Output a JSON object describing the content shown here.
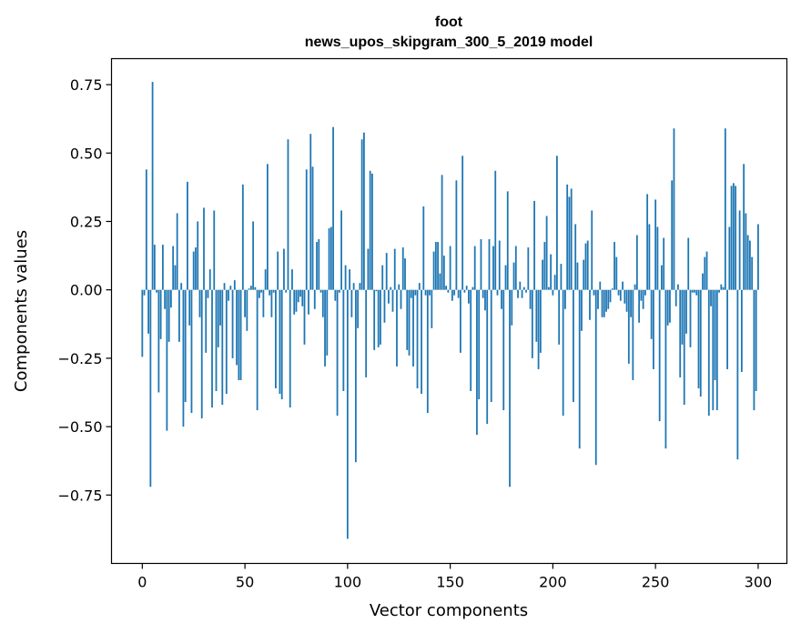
{
  "chart_data": {
    "type": "bar",
    "title": "foot",
    "subtitle": "news_upos_skipgram_300_5_2019 model",
    "xlabel": "Vector components",
    "ylabel": "Components values",
    "xlim": [
      -15,
      314
    ],
    "ylim": [
      -1.0,
      0.845
    ],
    "xticks": [
      0,
      50,
      100,
      150,
      200,
      250,
      300
    ],
    "yticks": [
      -0.75,
      -0.5,
      -0.25,
      0.0,
      0.25,
      0.5,
      0.75
    ],
    "ytick_labels": [
      "−0.75",
      "−0.50",
      "−0.25",
      "0.00",
      "0.25",
      "0.50",
      "0.75"
    ],
    "bar_color": "#1f77b4",
    "values": [
      -0.245,
      -0.02,
      0.44,
      -0.16,
      -0.72,
      0.76,
      0.165,
      -0.01,
      -0.375,
      -0.18,
      0.165,
      -0.07,
      -0.515,
      -0.19,
      -0.065,
      0.16,
      0.09,
      0.28,
      -0.19,
      0.025,
      -0.5,
      -0.41,
      0.395,
      -0.13,
      -0.45,
      0.14,
      0.155,
      0.25,
      -0.1,
      -0.47,
      0.3,
      -0.23,
      -0.03,
      0.075,
      -0.43,
      0.29,
      -0.37,
      -0.21,
      -0.13,
      -0.42,
      0.025,
      -0.38,
      -0.04,
      0.015,
      -0.25,
      0.035,
      -0.275,
      -0.33,
      -0.33,
      0.385,
      -0.1,
      -0.15,
      0.005,
      0.015,
      0.25,
      0.01,
      -0.44,
      -0.03,
      -0.01,
      -0.1,
      0.075,
      0.46,
      -0.02,
      -0.1,
      -0.01,
      -0.36,
      0.14,
      -0.38,
      -0.4,
      0.15,
      -0.01,
      0.55,
      -0.43,
      0.075,
      -0.09,
      -0.08,
      -0.045,
      -0.025,
      -0.06,
      -0.2,
      0.44,
      -0.09,
      0.57,
      0.45,
      -0.07,
      0.175,
      0.185,
      -0.01,
      -0.1,
      -0.28,
      -0.24,
      0.225,
      0.23,
      0.595,
      -0.04,
      -0.46,
      -0.01,
      0.29,
      -0.37,
      0.09,
      -0.91,
      0.075,
      -0.1,
      0.025,
      -0.63,
      -0.14,
      0.025,
      0.55,
      0.575,
      -0.32,
      0.15,
      0.435,
      0.425,
      -0.22,
      -0.005,
      -0.21,
      -0.2,
      0.09,
      -0.12,
      0.135,
      -0.05,
      0.01,
      -0.08,
      0.15,
      -0.28,
      0.02,
      -0.07,
      0.155,
      0.115,
      -0.22,
      -0.24,
      -0.03,
      -0.28,
      -0.02,
      -0.36,
      0.025,
      -0.38,
      0.305,
      -0.02,
      -0.45,
      -0.02,
      -0.14,
      0.14,
      0.175,
      0.175,
      0.06,
      0.42,
      0.125,
      0.015,
      -0.01,
      0.16,
      -0.04,
      -0.02,
      0.4,
      -0.03,
      -0.23,
      0.49,
      -0.01,
      0.015,
      -0.05,
      -0.37,
      0.01,
      0.16,
      -0.53,
      -0.4,
      0.185,
      -0.03,
      -0.075,
      -0.49,
      0.185,
      -0.41,
      0.16,
      0.435,
      -0.02,
      0.18,
      -0.07,
      -0.44,
      0.09,
      0.36,
      -0.72,
      -0.13,
      0.1,
      0.16,
      -0.03,
      0.03,
      -0.03,
      0.01,
      -0.01,
      0.155,
      -0.07,
      -0.25,
      0.325,
      -0.19,
      -0.29,
      -0.23,
      0.11,
      0.175,
      0.27,
      0.01,
      0.13,
      -0.02,
      0.055,
      0.49,
      -0.2,
      0.095,
      -0.46,
      -0.07,
      0.385,
      0.34,
      0.37,
      -0.41,
      0.24,
      0.1,
      -0.58,
      -0.15,
      0.11,
      0.17,
      0.18,
      -0.11,
      0.29,
      -0.02,
      -0.64,
      -0.07,
      0.03,
      -0.1,
      -0.1,
      -0.08,
      -0.07,
      -0.045,
      0.005,
      0.175,
      0.12,
      -0.02,
      -0.04,
      0.03,
      -0.05,
      -0.08,
      -0.27,
      -0.1,
      -0.33,
      0.02,
      0.2,
      -0.12,
      -0.04,
      -0.07,
      -0.02,
      0.35,
      0.24,
      -0.18,
      -0.29,
      0.33,
      0.23,
      -0.48,
      0.09,
      0.19,
      -0.58,
      -0.13,
      -0.12,
      0.4,
      0.59,
      -0.06,
      0.02,
      -0.32,
      -0.2,
      -0.42,
      -0.16,
      0.19,
      -0.21,
      -0.01,
      -0.01,
      -0.02,
      -0.36,
      -0.39,
      0.06,
      0.12,
      0.14,
      -0.46,
      -0.06,
      -0.44,
      -0.33,
      -0.44,
      -0.01,
      0.02,
      0.01,
      0.59,
      -0.29,
      0.23,
      0.38,
      0.39,
      0.38,
      -0.62,
      0.29,
      -0.3,
      0.46,
      0.28,
      0.2,
      0.18,
      0.12,
      -0.44,
      -0.37,
      0.24
    ]
  }
}
